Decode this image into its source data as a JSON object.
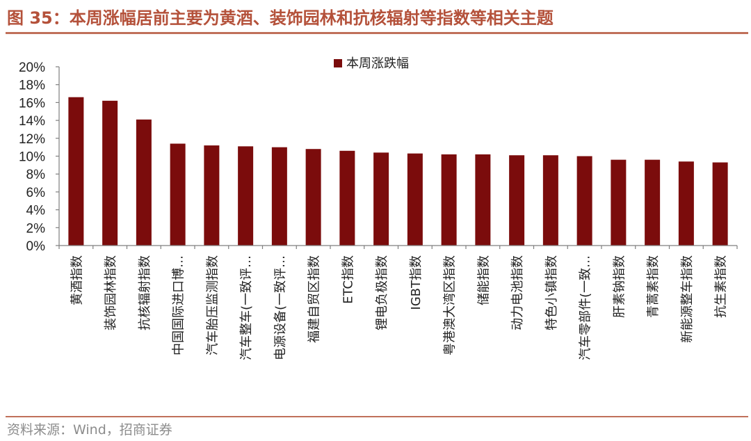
{
  "figure": {
    "title": "图 35：本周涨幅居前主要为黄酒、装饰园林和抗核辐射等指数等相关主题",
    "source": "资料来源：Wind，招商证券"
  },
  "colors": {
    "bar": "#7b0c0c",
    "accent": "#b4513a",
    "rule": "#c0705a",
    "axis": "#7f7f7f",
    "source": "#8c8c8c"
  },
  "chart_data": {
    "type": "bar",
    "categories": [
      "黄酒指数",
      "装饰园林指数",
      "抗核辐射指数",
      "中国国际进口博…",
      "汽车胎压监测指数",
      "汽车整车(一致评…",
      "电源设备(一致评…",
      "福建自贸区指数",
      "ETC指数",
      "锂电负极指数",
      "IGBT指数",
      "粤港澳大湾区指数",
      "储能指数",
      "动力电池指数",
      "特色小镇指数",
      "汽车零部件(一致…",
      "肝素钠指数",
      "青蒿素指数",
      "新能源整车指数",
      "抗生素指数"
    ],
    "series": [
      {
        "name": "本周涨跌幅",
        "values": [
          16.6,
          16.2,
          14.1,
          11.4,
          11.2,
          11.1,
          11.0,
          10.8,
          10.6,
          10.4,
          10.3,
          10.2,
          10.2,
          10.1,
          10.1,
          10.0,
          9.6,
          9.6,
          9.4,
          9.3
        ]
      }
    ],
    "ylim": [
      0,
      20
    ],
    "yticks": [
      "0%",
      "2%",
      "4%",
      "6%",
      "8%",
      "10%",
      "12%",
      "14%",
      "16%",
      "18%",
      "20%"
    ],
    "legend": "top-center",
    "grid": false
  }
}
